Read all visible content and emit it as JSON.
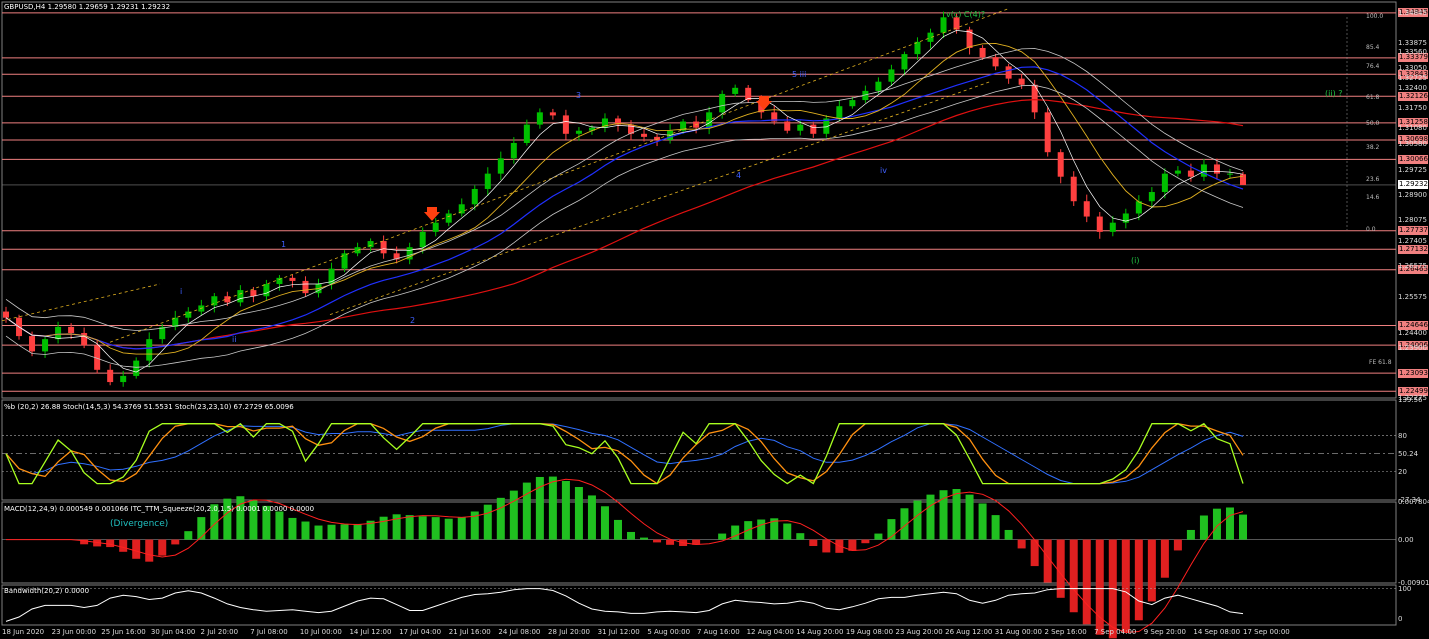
{
  "header": {
    "symbol_info": "GBPUSD,H4  1.29580 1.29659 1.29231 1.29232"
  },
  "colors": {
    "bull": "#00c000",
    "bear": "#ff4040",
    "level": "#f08080",
    "ma_red": "#e01010",
    "ma_blue": "#2030ff",
    "band": "#c8c8c8",
    "channel": "#e0b020",
    "stoch_main": "#a8ff20",
    "stoch_orange": "#ff9010",
    "macd_pos": "#20c020",
    "macd_neg": "#e02020"
  },
  "price_axis": {
    "ticks": [
      "1.34845",
      "1.33875",
      "1.33560",
      "1.33050",
      "1.32725",
      "1.32400",
      "1.31750",
      "1.31080",
      "1.30580",
      "1.29725",
      "1.28900",
      "1.28075",
      "1.27405",
      "1.26575",
      "1.25575",
      "1.24400",
      "1.23900",
      "1.22275"
    ],
    "level_tags": [
      "1.34845",
      "1.33379",
      "1.32843",
      "1.32126",
      "1.31258",
      "1.30698",
      "1.30066",
      "1.27737",
      "1.27132",
      "1.26465",
      "1.24646",
      "1.24006",
      "1.23093",
      "1.22499"
    ],
    "current_price": "1.29232"
  },
  "fibonacci": {
    "labels": [
      "100.0",
      "85.4",
      "76.4",
      "61.8",
      "50.0",
      "38.2",
      "23.6",
      "14.6",
      "0.0"
    ],
    "fe_label": "FE 61.8"
  },
  "waves": [
    {
      "text": "v(c) C(4)?",
      "color": "#20c040"
    },
    {
      "text": "(ii) ?",
      "color": "#20c040"
    },
    {
      "text": "(i)",
      "color": "#20c040"
    },
    {
      "text": "5 iii",
      "color": "#4060ff"
    },
    {
      "text": "3",
      "color": "#4060ff"
    },
    {
      "text": "4",
      "color": "#4060ff"
    },
    {
      "text": "iv",
      "color": "#4060ff"
    },
    {
      "text": "1",
      "color": "#4060ff"
    },
    {
      "text": "2",
      "color": "#4060ff"
    },
    {
      "text": "i",
      "color": "#4060ff"
    },
    {
      "text": "ii",
      "color": "#4060ff"
    }
  ],
  "time_axis": [
    "18 Jun 2020",
    "23 Jun 00:00",
    "25 Jun 16:00",
    "30 Jun 04:00",
    "2 Jul 20:00",
    "7 Jul 08:00",
    "10 Jul 00:00",
    "14 Jul 12:00",
    "17 Jul 04:00",
    "21 Jul 16:00",
    "24 Jul 08:00",
    "28 Jul 20:00",
    "31 Jul 12:00",
    "5 Aug 00:00",
    "7 Aug 16:00",
    "12 Aug 04:00",
    "14 Aug 20:00",
    "19 Aug 08:00",
    "23 Aug 20:00",
    "26 Aug 12:00",
    "31 Aug 00:00",
    "2 Sep 16:00",
    "7 Sep 04:00",
    "9 Sep 20:00",
    "14 Sep 08:00",
    "17 Sep 00:00"
  ],
  "stoch_panel": {
    "title": "%b (20,2) 26.88  Stoch(14,5,3) 54.3769 51.5531  Stoch(23,23,10) 67.2729 65.0096",
    "ticks": [
      "139.56",
      "80",
      "50.24",
      "20",
      "-27.34"
    ]
  },
  "macd_panel": {
    "title": "MACD(12,24,9) 0.000549 0.001066  ITC_TTM_Squeeze(20,2.0,1.5) 0.0001 0.0000 0.0000",
    "annotation": "(Divergence)",
    "ticks": [
      "0.007804",
      "0.00",
      "-0.009012"
    ]
  },
  "bandwidth_panel": {
    "title": "Bandwidth(20,2) 0.0000",
    "ticks": [
      "100",
      "0"
    ]
  },
  "chart_data": {
    "type": "candlestick",
    "title": "GBPUSD,H4",
    "ohlc_current": {
      "open": 1.2958,
      "high": 1.29659,
      "low": 1.29231,
      "close": 1.29232
    },
    "closes": [
      1.249,
      1.243,
      1.238,
      1.242,
      1.246,
      1.244,
      1.24,
      1.232,
      1.228,
      1.23,
      1.235,
      1.242,
      1.246,
      1.249,
      1.251,
      1.253,
      1.256,
      1.254,
      1.258,
      1.256,
      1.26,
      1.262,
      1.261,
      1.257,
      1.26,
      1.265,
      1.27,
      1.272,
      1.274,
      1.27,
      1.268,
      1.272,
      1.277,
      1.28,
      1.283,
      1.286,
      1.291,
      1.296,
      1.301,
      1.306,
      1.312,
      1.316,
      1.315,
      1.309,
      1.31,
      1.311,
      1.314,
      1.312,
      1.309,
      1.308,
      1.307,
      1.31,
      1.313,
      1.311,
      1.316,
      1.322,
      1.324,
      1.32,
      1.316,
      1.313,
      1.31,
      1.312,
      1.309,
      1.314,
      1.318,
      1.32,
      1.323,
      1.326,
      1.33,
      1.335,
      1.339,
      1.342,
      1.347,
      1.343,
      1.337,
      1.334,
      1.331,
      1.327,
      1.325,
      1.316,
      1.303,
      1.295,
      1.287,
      1.282,
      1.277,
      1.28,
      1.283,
      1.287,
      1.29,
      1.296,
      1.297,
      1.295,
      1.299,
      1.296,
      1.296,
      1.2923
    ],
    "horizontal_levels": [
      1.34845,
      1.33379,
      1.32843,
      1.32126,
      1.31258,
      1.30698,
      1.30066,
      1.27737,
      1.27132,
      1.26465,
      1.24646,
      1.24006,
      1.23093,
      1.22499
    ],
    "y_range": [
      1.2228,
      1.352
    ]
  }
}
